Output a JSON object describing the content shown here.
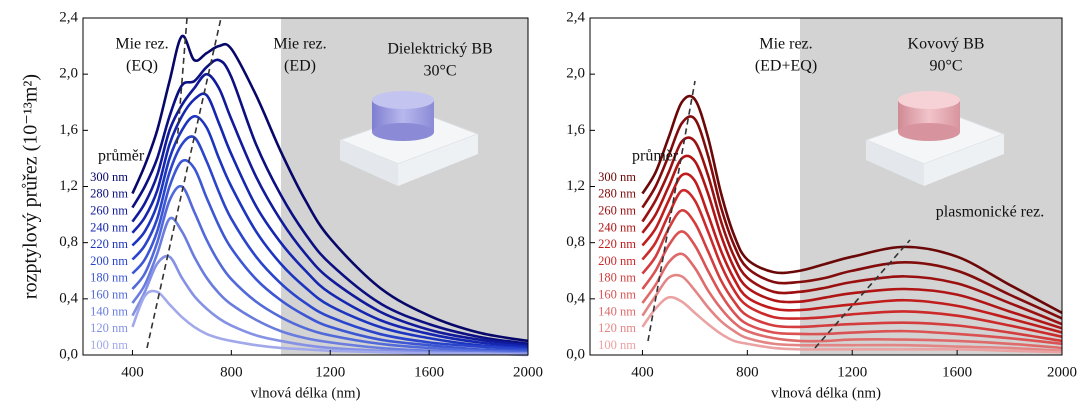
{
  "chart_data": [
    {
      "type": "line",
      "ylabel": "rozptylový průřez (10⁻¹³m²)",
      "xlabel": "vlnová délka (nm)",
      "legend_title": "průměr",
      "annotations": [
        [
          "Mie rez.",
          "(EQ)"
        ],
        [
          "Mie rez.",
          "(ED)"
        ],
        [
          "Dielektrický BB",
          "30°C"
        ]
      ],
      "xlim": [
        200,
        2000
      ],
      "ylim": [
        0,
        2.4
      ],
      "xticks": [
        400,
        800,
        1200,
        1600,
        2000
      ],
      "yticks": [
        {
          "value": 0,
          "label": "0,0"
        },
        {
          "value": 0.4,
          "label": "0,4"
        },
        {
          "value": 0.8,
          "label": "0,8"
        },
        {
          "value": 1.2,
          "label": "1,2"
        },
        {
          "value": 1.6,
          "label": "1,6"
        },
        {
          "value": 2.0,
          "label": "2,0"
        },
        {
          "value": 2.4,
          "label": "2,4"
        }
      ],
      "x": [
        400,
        450,
        500,
        550,
        600,
        650,
        700,
        750,
        800,
        900,
        1000,
        1100,
        1200,
        1400,
        1600,
        1800,
        2000
      ],
      "series": [
        {
          "name": "300 nm",
          "color": "#07076a",
          "values": [
            1.15,
            1.35,
            1.6,
            1.95,
            2.27,
            2.1,
            2.15,
            2.2,
            2.18,
            1.85,
            1.45,
            1.1,
            0.83,
            0.48,
            0.28,
            0.16,
            0.1
          ]
        },
        {
          "name": "280 nm",
          "color": "#0b0f82",
          "values": [
            1.05,
            1.2,
            1.4,
            1.7,
            1.92,
            1.95,
            2.05,
            2.1,
            1.98,
            1.5,
            1.14,
            0.86,
            0.65,
            0.37,
            0.22,
            0.13,
            0.08
          ]
        },
        {
          "name": "260 nm",
          "color": "#101a9a",
          "values": [
            0.95,
            1.08,
            1.28,
            1.6,
            1.78,
            1.9,
            2.0,
            1.9,
            1.68,
            1.27,
            0.96,
            0.72,
            0.54,
            0.31,
            0.18,
            0.11,
            0.07
          ]
        },
        {
          "name": "240 nm",
          "color": "#1526b0",
          "values": [
            0.87,
            0.98,
            1.17,
            1.5,
            1.7,
            1.82,
            1.85,
            1.65,
            1.43,
            1.06,
            0.8,
            0.6,
            0.44,
            0.25,
            0.15,
            0.09,
            0.06
          ]
        },
        {
          "name": "220 nm",
          "color": "#1c35c0",
          "values": [
            0.78,
            0.88,
            1.07,
            1.4,
            1.6,
            1.7,
            1.62,
            1.4,
            1.2,
            0.88,
            0.65,
            0.48,
            0.35,
            0.2,
            0.12,
            0.07,
            0.05
          ]
        },
        {
          "name": "200 nm",
          "color": "#2a45cc",
          "values": [
            0.68,
            0.78,
            0.97,
            1.3,
            1.5,
            1.55,
            1.38,
            1.16,
            0.97,
            0.7,
            0.51,
            0.37,
            0.27,
            0.15,
            0.09,
            0.06,
            0.04
          ]
        },
        {
          "name": "180 nm",
          "color": "#3d57d4",
          "values": [
            0.58,
            0.68,
            0.88,
            1.2,
            1.38,
            1.33,
            1.12,
            0.92,
            0.76,
            0.54,
            0.39,
            0.28,
            0.2,
            0.11,
            0.07,
            0.04,
            0.03
          ]
        },
        {
          "name": "160 nm",
          "color": "#5269da",
          "values": [
            0.47,
            0.58,
            0.8,
            1.1,
            1.2,
            1.02,
            0.82,
            0.66,
            0.54,
            0.38,
            0.27,
            0.19,
            0.14,
            0.08,
            0.05,
            0.03,
            0.02
          ]
        },
        {
          "name": "140 nm",
          "color": "#6a7ddf",
          "values": [
            0.37,
            0.5,
            0.72,
            0.97,
            0.88,
            0.7,
            0.55,
            0.44,
            0.36,
            0.25,
            0.17,
            0.12,
            0.09,
            0.05,
            0.03,
            0.02,
            0.01
          ]
        },
        {
          "name": "120 nm",
          "color": "#8591e4",
          "values": [
            0.28,
            0.45,
            0.65,
            0.7,
            0.55,
            0.42,
            0.33,
            0.26,
            0.21,
            0.14,
            0.1,
            0.07,
            0.05,
            0.03,
            0.02,
            0.01,
            0.01
          ]
        },
        {
          "name": "100 nm",
          "color": "#a2a9ea",
          "values": [
            0.2,
            0.42,
            0.45,
            0.36,
            0.27,
            0.2,
            0.15,
            0.12,
            0.1,
            0.07,
            0.05,
            0.04,
            0.03,
            0.02,
            0.01,
            0.01,
            0.0
          ]
        }
      ]
    },
    {
      "type": "line",
      "xlabel": "vlnová délka (nm)",
      "legend_title": "průměr",
      "annotations": [
        [
          "Mie rez.",
          "(ED+EQ)"
        ],
        [
          "Kovový BB",
          "90°C"
        ],
        [
          "plasmonické rez."
        ]
      ],
      "xlim": [
        200,
        2000
      ],
      "ylim": [
        0,
        2.4
      ],
      "xticks": [
        400,
        800,
        1200,
        1600,
        2000
      ],
      "yticks": [
        {
          "value": 0,
          "label": "0,0"
        },
        {
          "value": 0.4,
          "label": "0,4"
        },
        {
          "value": 0.8,
          "label": "0,8"
        },
        {
          "value": 1.2,
          "label": "1,2"
        },
        {
          "value": 1.6,
          "label": "1,6"
        },
        {
          "value": 2.0,
          "label": "2,0"
        },
        {
          "value": 2.4,
          "label": "2,4"
        }
      ],
      "x": [
        400,
        450,
        500,
        550,
        600,
        650,
        700,
        750,
        800,
        900,
        1000,
        1100,
        1200,
        1400,
        1600,
        1800,
        2000
      ],
      "series": [
        {
          "name": "300 nm",
          "color": "#6a0707",
          "values": [
            1.15,
            1.3,
            1.55,
            1.8,
            1.82,
            1.55,
            1.15,
            0.85,
            0.68,
            0.59,
            0.6,
            0.65,
            0.7,
            0.77,
            0.7,
            0.5,
            0.3
          ]
        },
        {
          "name": "280 nm",
          "color": "#820b0b",
          "values": [
            1.05,
            1.2,
            1.42,
            1.65,
            1.68,
            1.42,
            1.05,
            0.78,
            0.62,
            0.52,
            0.52,
            0.55,
            0.6,
            0.66,
            0.6,
            0.43,
            0.26
          ]
        },
        {
          "name": "260 nm",
          "color": "#9a1010",
          "values": [
            0.95,
            1.1,
            1.3,
            1.52,
            1.52,
            1.28,
            0.95,
            0.7,
            0.55,
            0.45,
            0.45,
            0.48,
            0.52,
            0.56,
            0.51,
            0.37,
            0.22
          ]
        },
        {
          "name": "240 nm",
          "color": "#b01515",
          "values": [
            0.87,
            1.0,
            1.2,
            1.4,
            1.38,
            1.15,
            0.85,
            0.62,
            0.48,
            0.39,
            0.38,
            0.41,
            0.44,
            0.47,
            0.43,
            0.31,
            0.19
          ]
        },
        {
          "name": "220 nm",
          "color": "#c01c1c",
          "values": [
            0.78,
            0.9,
            1.1,
            1.28,
            1.24,
            1.0,
            0.74,
            0.54,
            0.41,
            0.33,
            0.32,
            0.34,
            0.36,
            0.39,
            0.35,
            0.26,
            0.16
          ]
        },
        {
          "name": "200 nm",
          "color": "#cc2a2a",
          "values": [
            0.68,
            0.8,
            1.0,
            1.17,
            1.1,
            0.88,
            0.64,
            0.46,
            0.35,
            0.27,
            0.26,
            0.27,
            0.29,
            0.31,
            0.28,
            0.21,
            0.13
          ]
        },
        {
          "name": "180 nm",
          "color": "#d43d3d",
          "values": [
            0.58,
            0.7,
            0.9,
            1.03,
            0.94,
            0.74,
            0.53,
            0.38,
            0.28,
            0.21,
            0.2,
            0.21,
            0.22,
            0.23,
            0.21,
            0.16,
            0.1
          ]
        },
        {
          "name": "160 nm",
          "color": "#da5252",
          "values": [
            0.47,
            0.6,
            0.78,
            0.88,
            0.78,
            0.6,
            0.43,
            0.3,
            0.22,
            0.16,
            0.15,
            0.15,
            0.16,
            0.17,
            0.15,
            0.12,
            0.08
          ]
        },
        {
          "name": "140 nm",
          "color": "#df6a6a",
          "values": [
            0.37,
            0.5,
            0.66,
            0.72,
            0.62,
            0.46,
            0.33,
            0.23,
            0.17,
            0.12,
            0.1,
            0.1,
            0.11,
            0.11,
            0.1,
            0.08,
            0.05
          ]
        },
        {
          "name": "120 nm",
          "color": "#e48585",
          "values": [
            0.28,
            0.42,
            0.55,
            0.56,
            0.46,
            0.34,
            0.24,
            0.17,
            0.12,
            0.08,
            0.07,
            0.07,
            0.07,
            0.07,
            0.06,
            0.05,
            0.03
          ]
        },
        {
          "name": "100 nm",
          "color": "#eaa2a2",
          "values": [
            0.2,
            0.33,
            0.41,
            0.38,
            0.3,
            0.22,
            0.15,
            0.1,
            0.08,
            0.05,
            0.04,
            0.04,
            0.04,
            0.04,
            0.04,
            0.03,
            0.02
          ]
        }
      ]
    }
  ]
}
